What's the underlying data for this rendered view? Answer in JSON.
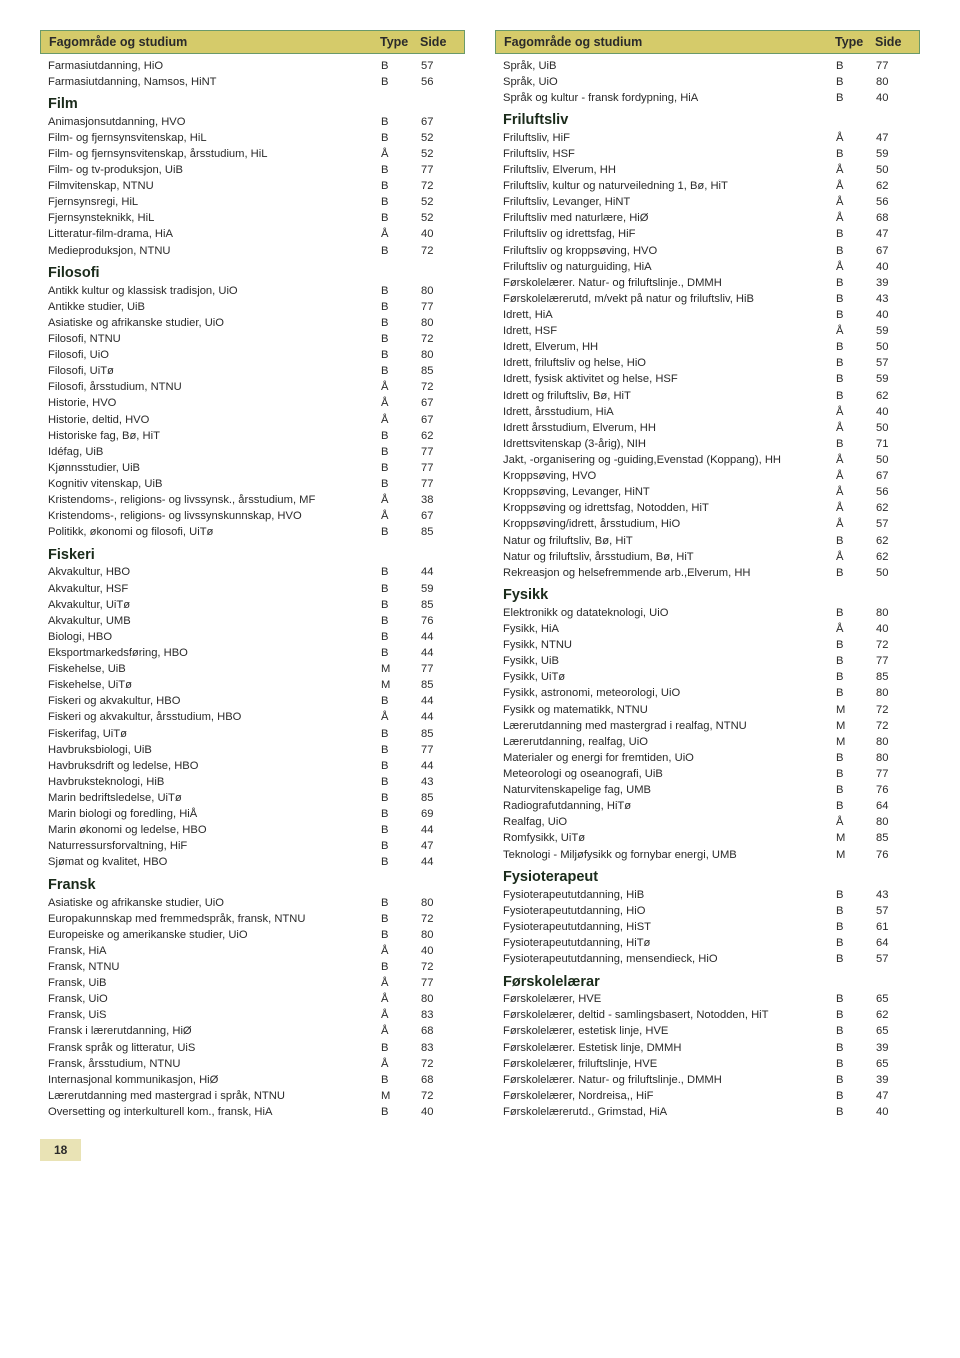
{
  "pageNumber": "18",
  "header": {
    "label": "Fagområde og studium",
    "type": "Type",
    "side": "Side"
  },
  "colors": {
    "headerBg": "#d5cb6a",
    "headerBorder": "#6a9a6a",
    "text": "#2a2a2a",
    "pageNumBg": "#e9e3b5"
  },
  "left": {
    "topRows": [
      {
        "label": "Farmasiutdanning, HiO",
        "type": "B",
        "side": "57"
      },
      {
        "label": "Farmasiutdanning, Namsos, HiNT",
        "type": "B",
        "side": "56"
      }
    ],
    "sections": [
      {
        "title": "Film",
        "rows": [
          {
            "label": "Animasjonsutdanning, HVO",
            "type": "B",
            "side": "67"
          },
          {
            "label": "Film- og fjernsynsvitenskap, HiL",
            "type": "B",
            "side": "52"
          },
          {
            "label": "Film- og fjernsynsvitenskap, årsstudium, HiL",
            "type": "Å",
            "side": "52"
          },
          {
            "label": "Film- og tv-produksjon, UiB",
            "type": "B",
            "side": "77"
          },
          {
            "label": "Filmvitenskap, NTNU",
            "type": "B",
            "side": "72"
          },
          {
            "label": "Fjernsynsregi, HiL",
            "type": "B",
            "side": "52"
          },
          {
            "label": "Fjernsynsteknikk, HiL",
            "type": "B",
            "side": "52"
          },
          {
            "label": "Litteratur-film-drama, HiA",
            "type": "Å",
            "side": "40"
          },
          {
            "label": "Medieproduksjon, NTNU",
            "type": "B",
            "side": "72"
          }
        ]
      },
      {
        "title": "Filosofi",
        "rows": [
          {
            "label": "Antikk kultur og klassisk tradisjon, UiO",
            "type": "B",
            "side": "80"
          },
          {
            "label": "Antikke studier, UiB",
            "type": "B",
            "side": "77"
          },
          {
            "label": "Asiatiske og afrikanske studier, UiO",
            "type": "B",
            "side": "80"
          },
          {
            "label": "Filosofi, NTNU",
            "type": "B",
            "side": "72"
          },
          {
            "label": "Filosofi, UiO",
            "type": "B",
            "side": "80"
          },
          {
            "label": "Filosofi, UiTø",
            "type": "B",
            "side": "85"
          },
          {
            "label": "Filosofi, årsstudium, NTNU",
            "type": "Å",
            "side": "72"
          },
          {
            "label": "Historie, HVO",
            "type": "Å",
            "side": "67"
          },
          {
            "label": "Historie, deltid, HVO",
            "type": "Å",
            "side": "67"
          },
          {
            "label": "Historiske fag, Bø, HiT",
            "type": "B",
            "side": "62"
          },
          {
            "label": "Idéfag, UiB",
            "type": "B",
            "side": "77"
          },
          {
            "label": "Kjønnsstudier, UiB",
            "type": "B",
            "side": "77"
          },
          {
            "label": "Kognitiv vitenskap, UiB",
            "type": "B",
            "side": "77"
          },
          {
            "label": "Kristendoms-, religions- og livssynsk., årsstudium, MF",
            "type": "Å",
            "side": "38"
          },
          {
            "label": "Kristendoms-, religions- og livssynskunnskap, HVO",
            "type": "Å",
            "side": "67"
          },
          {
            "label": "Politikk, økonomi og filosofi, UiTø",
            "type": "B",
            "side": "85"
          }
        ]
      },
      {
        "title": "Fiskeri",
        "rows": [
          {
            "label": "Akvakultur, HBO",
            "type": "B",
            "side": "44"
          },
          {
            "label": "Akvakultur, HSF",
            "type": "B",
            "side": "59"
          },
          {
            "label": "Akvakultur, UiTø",
            "type": "B",
            "side": "85"
          },
          {
            "label": "Akvakultur, UMB",
            "type": "B",
            "side": "76"
          },
          {
            "label": "Biologi, HBO",
            "type": "B",
            "side": "44"
          },
          {
            "label": "Eksportmarkedsføring, HBO",
            "type": "B",
            "side": "44"
          },
          {
            "label": "Fiskehelse, UiB",
            "type": "M",
            "side": "77"
          },
          {
            "label": "Fiskehelse, UiTø",
            "type": "M",
            "side": "85"
          },
          {
            "label": "Fiskeri og akvakultur, HBO",
            "type": "B",
            "side": "44"
          },
          {
            "label": "Fiskeri og akvakultur, årsstudium, HBO",
            "type": "Å",
            "side": "44"
          },
          {
            "label": "Fiskerifag, UiTø",
            "type": "B",
            "side": "85"
          },
          {
            "label": "Havbruksbiologi, UiB",
            "type": "B",
            "side": "77"
          },
          {
            "label": "Havbruksdrift og ledelse, HBO",
            "type": "B",
            "side": "44"
          },
          {
            "label": "Havbruksteknologi, HiB",
            "type": "B",
            "side": "43"
          },
          {
            "label": "Marin bedriftsledelse, UiTø",
            "type": "B",
            "side": "85"
          },
          {
            "label": "Marin biologi og foredling, HiÅ",
            "type": "B",
            "side": "69"
          },
          {
            "label": "Marin økonomi og ledelse, HBO",
            "type": "B",
            "side": "44"
          },
          {
            "label": "Naturressursforvaltning, HiF",
            "type": "B",
            "side": "47"
          },
          {
            "label": "Sjømat og kvalitet, HBO",
            "type": "B",
            "side": "44"
          }
        ]
      },
      {
        "title": "Fransk",
        "rows": [
          {
            "label": "Asiatiske og afrikanske studier, UiO",
            "type": "B",
            "side": "80"
          },
          {
            "label": "Europakunnskap med fremmedspråk, fransk, NTNU",
            "type": "B",
            "side": "72"
          },
          {
            "label": "Europeiske og amerikanske studier, UiO",
            "type": "B",
            "side": "80"
          },
          {
            "label": "Fransk, HiA",
            "type": "Å",
            "side": "40"
          },
          {
            "label": "Fransk, NTNU",
            "type": "B",
            "side": "72"
          },
          {
            "label": "Fransk, UiB",
            "type": "Å",
            "side": "77"
          },
          {
            "label": "Fransk, UiO",
            "type": "Å",
            "side": "80"
          },
          {
            "label": "Fransk, UiS",
            "type": "Å",
            "side": "83"
          },
          {
            "label": "Fransk i lærerutdanning, HiØ",
            "type": "Å",
            "side": "68"
          },
          {
            "label": "Fransk språk og litteratur, UiS",
            "type": "B",
            "side": "83"
          },
          {
            "label": "Fransk, årsstudium, NTNU",
            "type": "Å",
            "side": "72"
          },
          {
            "label": "Internasjonal kommunikasjon, HiØ",
            "type": "B",
            "side": "68"
          },
          {
            "label": "Lærerutdanning med mastergrad i språk, NTNU",
            "type": "M",
            "side": "72"
          },
          {
            "label": "Oversetting og interkulturell kom., fransk, HiA",
            "type": "B",
            "side": "40"
          }
        ]
      }
    ]
  },
  "right": {
    "topRows": [
      {
        "label": "Språk, UiB",
        "type": "B",
        "side": "77"
      },
      {
        "label": "Språk, UiO",
        "type": "B",
        "side": "80"
      },
      {
        "label": "Språk og kultur - fransk fordypning, HiA",
        "type": "B",
        "side": "40"
      }
    ],
    "sections": [
      {
        "title": "Friluftsliv",
        "rows": [
          {
            "label": "Friluftsliv, HiF",
            "type": "Å",
            "side": "47"
          },
          {
            "label": "Friluftsliv, HSF",
            "type": "B",
            "side": "59"
          },
          {
            "label": "Friluftsliv, Elverum, HH",
            "type": "Å",
            "side": "50"
          },
          {
            "label": "Friluftsliv, kultur og naturveiledning 1, Bø, HiT",
            "type": "Å",
            "side": "62"
          },
          {
            "label": "Friluftsliv, Levanger, HiNT",
            "type": "Å",
            "side": "56"
          },
          {
            "label": "Friluftsliv med naturlære, HiØ",
            "type": "Å",
            "side": "68"
          },
          {
            "label": "Friluftsliv og idrettsfag, HiF",
            "type": "B",
            "side": "47"
          },
          {
            "label": "Friluftsliv og kroppsøving, HVO",
            "type": "B",
            "side": "67"
          },
          {
            "label": "Friluftsliv og naturguiding, HiA",
            "type": "Å",
            "side": "40"
          },
          {
            "label": "Førskolelærer. Natur- og friluftslinje., DMMH",
            "type": "B",
            "side": "39"
          },
          {
            "label": "Førskolelærerutd, m/vekt på natur og friluftsliv, HiB",
            "type": "B",
            "side": "43"
          },
          {
            "label": "Idrett, HiA",
            "type": "B",
            "side": "40"
          },
          {
            "label": "Idrett, HSF",
            "type": "Å",
            "side": "59"
          },
          {
            "label": "Idrett, Elverum, HH",
            "type": "B",
            "side": "50"
          },
          {
            "label": "Idrett, friluftsliv og helse, HiO",
            "type": "B",
            "side": "57"
          },
          {
            "label": "Idrett, fysisk aktivitet og helse, HSF",
            "type": "B",
            "side": "59"
          },
          {
            "label": "Idrett og friluftsliv,  Bø, HiT",
            "type": "B",
            "side": "62"
          },
          {
            "label": "Idrett, årsstudium, HiA",
            "type": "Å",
            "side": "40"
          },
          {
            "label": "Idrett årsstudium, Elverum, HH",
            "type": "Å",
            "side": "50"
          },
          {
            "label": "Idrettsvitenskap (3-årig), NIH",
            "type": "B",
            "side": "71"
          },
          {
            "label": "Jakt, -organisering og -guiding,Evenstad (Koppang), HH",
            "type": "Å",
            "side": "50"
          },
          {
            "label": "Kroppsøving, HVO",
            "type": "Å",
            "side": "67"
          },
          {
            "label": "Kroppsøving, Levanger, HiNT",
            "type": "Å",
            "side": "56"
          },
          {
            "label": "Kroppsøving og idrettsfag, Notodden, HiT",
            "type": "Å",
            "side": "62"
          },
          {
            "label": "Kroppsøving/idrett, årsstudium, HiO",
            "type": "Å",
            "side": "57"
          },
          {
            "label": "Natur og friluftsliv,  Bø, HiT",
            "type": "B",
            "side": "62"
          },
          {
            "label": "Natur og friluftsliv, årsstudium, Bø, HiT",
            "type": "Å",
            "side": "62"
          },
          {
            "label": "Rekreasjon og helsefremmende arb.,Elverum, HH",
            "type": "B",
            "side": "50"
          }
        ]
      },
      {
        "title": "Fysikk",
        "rows": [
          {
            "label": "Elektronikk og datateknologi, UiO",
            "type": "B",
            "side": "80"
          },
          {
            "label": "Fysikk, HiA",
            "type": "Å",
            "side": "40"
          },
          {
            "label": "Fysikk, NTNU",
            "type": "B",
            "side": "72"
          },
          {
            "label": "Fysikk, UiB",
            "type": "B",
            "side": "77"
          },
          {
            "label": "Fysikk, UiTø",
            "type": "B",
            "side": "85"
          },
          {
            "label": "Fysikk, astronomi, meteorologi, UiO",
            "type": "B",
            "side": "80"
          },
          {
            "label": "Fysikk og matematikk, NTNU",
            "type": "M",
            "side": "72"
          },
          {
            "label": "Lærerutdanning med mastergrad i realfag, NTNU",
            "type": "M",
            "side": "72"
          },
          {
            "label": "Lærerutdanning, realfag, UiO",
            "type": "M",
            "side": "80"
          },
          {
            "label": "Materialer og energi for fremtiden, UiO",
            "type": "B",
            "side": "80"
          },
          {
            "label": "Meteorologi og oseanografi, UiB",
            "type": "B",
            "side": "77"
          },
          {
            "label": "Naturvitenskapelige fag, UMB",
            "type": "B",
            "side": "76"
          },
          {
            "label": "Radiografutdanning, HiTø",
            "type": "B",
            "side": "64"
          },
          {
            "label": "Realfag, UiO",
            "type": "Å",
            "side": "80"
          },
          {
            "label": "Romfysikk, UiTø",
            "type": "M",
            "side": "85"
          },
          {
            "label": "Teknologi - Miljøfysikk og fornybar energi, UMB",
            "type": "M",
            "side": "76"
          }
        ]
      },
      {
        "title": "Fysioterapeut",
        "rows": [
          {
            "label": "Fysioterapeututdanning, HiB",
            "type": "B",
            "side": "43"
          },
          {
            "label": "Fysioterapeututdanning, HiO",
            "type": "B",
            "side": "57"
          },
          {
            "label": "Fysioterapeututdanning, HiST",
            "type": "B",
            "side": "61"
          },
          {
            "label": "Fysioterapeututdanning, HiTø",
            "type": "B",
            "side": "64"
          },
          {
            "label": "Fysioterapeututdanning, mensendieck, HiO",
            "type": "B",
            "side": "57"
          }
        ]
      },
      {
        "title": "Førskolelærar",
        "rows": [
          {
            "label": "Førskolelærer, HVE",
            "type": "B",
            "side": "65"
          },
          {
            "label": "Førskolelærer, deltid - samlingsbasert,  Notodden, HiT",
            "type": "B",
            "side": "62"
          },
          {
            "label": "Førskolelærer, estetisk linje, HVE",
            "type": "B",
            "side": "65"
          },
          {
            "label": "Førskolelærer. Estetisk linje, DMMH",
            "type": "B",
            "side": "39"
          },
          {
            "label": "Førskolelærer, friluftslinje, HVE",
            "type": "B",
            "side": "65"
          },
          {
            "label": "Førskolelærer. Natur- og friluftslinje., DMMH",
            "type": "B",
            "side": "39"
          },
          {
            "label": "Førskolelærer, Nordreisa,, HiF",
            "type": "B",
            "side": "47"
          },
          {
            "label": "Førskolelærerutd., Grimstad, HiA",
            "type": "B",
            "side": "40"
          }
        ]
      }
    ]
  }
}
